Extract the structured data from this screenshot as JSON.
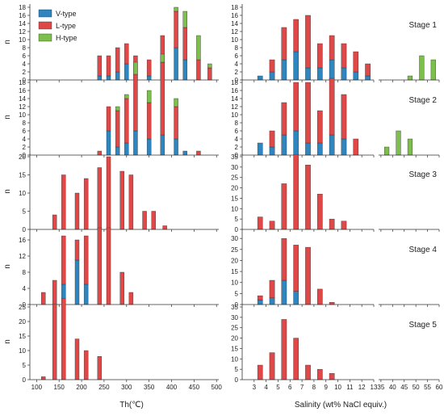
{
  "chart_data": {
    "type": "bar",
    "stacked": true,
    "legend": {
      "placement": "top-left",
      "entries": [
        {
          "name": "V-type",
          "color": "#2e86c1"
        },
        {
          "name": "L-type",
          "color": "#e04848"
        },
        {
          "name": "H-type",
          "color": "#7cbf4a"
        }
      ]
    },
    "ylabel": "n",
    "left": {
      "xlabel": "Th(℃)",
      "xlim": [
        85,
        505
      ],
      "xticks": [
        100,
        150,
        200,
        250,
        300,
        350,
        400,
        450,
        500
      ],
      "bar_width": 9
    },
    "right": {
      "xlabel": "Salinity (wt% NaCl equiv.)",
      "sections": [
        {
          "xlim": [
            2,
            13
          ],
          "xticks": [
            3,
            4,
            5,
            6,
            7,
            8,
            9,
            10,
            11,
            12,
            13
          ],
          "bar_width": 0.42
        },
        {
          "xlim": [
            34,
            60
          ],
          "xticks": [
            35,
            40,
            45,
            50,
            55,
            60
          ],
          "bar_width": 2
        }
      ]
    },
    "stages": [
      {
        "label": "Stage 1",
        "left_ylim": [
          0,
          18
        ],
        "left_yticks": [
          0,
          2,
          4,
          6,
          8,
          10,
          12,
          14,
          16,
          18
        ],
        "right_ylim": [
          0,
          18
        ],
        "right_yticks": [
          0,
          2,
          4,
          6,
          8,
          10,
          12,
          14,
          16,
          18
        ],
        "th": [
          {
            "x": 240,
            "V": 1,
            "L": 5,
            "H": 0
          },
          {
            "x": 260,
            "V": 1,
            "L": 5,
            "H": 0
          },
          {
            "x": 280,
            "V": 2,
            "L": 6,
            "H": 0
          },
          {
            "x": 300,
            "V": 4,
            "L": 5,
            "H": 0
          },
          {
            "x": 320,
            "V": 3,
            "L": 3,
            "H": 0
          },
          {
            "x": 350,
            "V": 1,
            "L": 4,
            "H": 0
          },
          {
            "x": 380,
            "V": 6,
            "L": 5,
            "H": 0
          },
          {
            "x": 410,
            "V": 8,
            "L": 9,
            "H": 1
          },
          {
            "x": 430,
            "V": 5,
            "L": 8,
            "H": 4
          },
          {
            "x": 460,
            "V": 0,
            "L": 5,
            "H": 6
          },
          {
            "x": 485,
            "V": 0,
            "L": 3,
            "H": 1
          }
        ],
        "salinity": [
          {
            "x": 3.5,
            "V": 1,
            "L": 0,
            "H": 0
          },
          {
            "x": 4.5,
            "V": 2,
            "L": 3,
            "H": 0
          },
          {
            "x": 5.5,
            "V": 5,
            "L": 8,
            "H": 0
          },
          {
            "x": 6.5,
            "V": 7,
            "L": 8,
            "H": 0
          },
          {
            "x": 7.5,
            "V": 3,
            "L": 13,
            "H": 0
          },
          {
            "x": 8.5,
            "V": 3,
            "L": 6,
            "H": 0
          },
          {
            "x": 9.5,
            "V": 5,
            "L": 6,
            "H": 0
          },
          {
            "x": 10.5,
            "V": 3,
            "L": 6,
            "H": 0
          },
          {
            "x": 11.5,
            "V": 2,
            "L": 5,
            "H": 0
          },
          {
            "x": 12.5,
            "V": 1,
            "L": 3,
            "H": 0
          },
          {
            "x": 47.5,
            "V": 0,
            "L": 0,
            "H": 1
          },
          {
            "x": 52.5,
            "V": 0,
            "L": 0,
            "H": 6
          },
          {
            "x": 57.5,
            "V": 0,
            "L": 0,
            "H": 5
          }
        ]
      },
      {
        "label": "Stage 2",
        "left_ylim": [
          0,
          18
        ],
        "left_yticks": [
          0,
          2,
          4,
          6,
          8,
          10,
          12,
          14,
          16,
          18
        ],
        "right_ylim": [
          0,
          18
        ],
        "right_yticks": [
          0,
          2,
          4,
          6,
          8,
          10,
          12,
          14,
          16,
          18
        ],
        "th": [
          {
            "x": 240,
            "V": 0,
            "L": 1,
            "H": 0
          },
          {
            "x": 260,
            "V": 6,
            "L": 6,
            "H": 0
          },
          {
            "x": 280,
            "V": 2,
            "L": 9,
            "H": 1
          },
          {
            "x": 300,
            "V": 3,
            "L": 11,
            "H": 1
          },
          {
            "x": 320,
            "V": 6,
            "L": 14,
            "H": 3
          },
          {
            "x": 350,
            "V": 4,
            "L": 9,
            "H": 3
          },
          {
            "x": 380,
            "V": 5,
            "L": 18,
            "H": 2
          },
          {
            "x": 410,
            "V": 4,
            "L": 8,
            "H": 2
          },
          {
            "x": 430,
            "V": 1,
            "L": 0,
            "H": 0
          },
          {
            "x": 460,
            "V": 0,
            "L": 1,
            "H": 0
          }
        ],
        "salinity": [
          {
            "x": 3.5,
            "V": 3,
            "L": 0,
            "H": 0
          },
          {
            "x": 4.5,
            "V": 2,
            "L": 4,
            "H": 0
          },
          {
            "x": 5.5,
            "V": 5,
            "L": 8,
            "H": 0
          },
          {
            "x": 6.5,
            "V": 6,
            "L": 12,
            "H": 0
          },
          {
            "x": 7.5,
            "V": 3,
            "L": 15,
            "H": 0
          },
          {
            "x": 8.5,
            "V": 3,
            "L": 8,
            "H": 0
          },
          {
            "x": 9.5,
            "V": 5,
            "L": 14,
            "H": 0
          },
          {
            "x": 10.5,
            "V": 4,
            "L": 11,
            "H": 0
          },
          {
            "x": 11.5,
            "V": 0,
            "L": 4,
            "H": 0
          },
          {
            "x": 37.5,
            "V": 0,
            "L": 0,
            "H": 2
          },
          {
            "x": 42.5,
            "V": 0,
            "L": 0,
            "H": 6
          },
          {
            "x": 47.5,
            "V": 0,
            "L": 0,
            "H": 4
          }
        ]
      },
      {
        "label": "Stage 3",
        "left_ylim": [
          0,
          20
        ],
        "left_yticks": [
          0,
          5,
          10,
          15,
          20
        ],
        "right_ylim": [
          0,
          35
        ],
        "right_yticks": [
          0,
          5,
          10,
          15,
          20,
          25,
          30,
          35
        ],
        "th": [
          {
            "x": 140,
            "V": 0,
            "L": 4,
            "H": 0
          },
          {
            "x": 160,
            "V": 0,
            "L": 15,
            "H": 0
          },
          {
            "x": 190,
            "V": 0,
            "L": 10,
            "H": 0
          },
          {
            "x": 210,
            "V": 0,
            "L": 14,
            "H": 0
          },
          {
            "x": 240,
            "V": 0,
            "L": 17,
            "H": 0
          },
          {
            "x": 260,
            "V": 0,
            "L": 20,
            "H": 0
          },
          {
            "x": 290,
            "V": 0,
            "L": 16,
            "H": 0
          },
          {
            "x": 310,
            "V": 0,
            "L": 15,
            "H": 0
          },
          {
            "x": 340,
            "V": 0,
            "L": 5,
            "H": 0
          },
          {
            "x": 360,
            "V": 0,
            "L": 5,
            "H": 0
          },
          {
            "x": 385,
            "V": 0,
            "L": 1,
            "H": 0
          }
        ],
        "salinity": [
          {
            "x": 3.5,
            "V": 0,
            "L": 6,
            "H": 0
          },
          {
            "x": 4.5,
            "V": 0,
            "L": 4,
            "H": 0
          },
          {
            "x": 5.5,
            "V": 0,
            "L": 22,
            "H": 0
          },
          {
            "x": 6.5,
            "V": 0,
            "L": 36,
            "H": 0
          },
          {
            "x": 7.5,
            "V": 0,
            "L": 31,
            "H": 0
          },
          {
            "x": 8.5,
            "V": 0,
            "L": 17,
            "H": 0
          },
          {
            "x": 9.5,
            "V": 0,
            "L": 5,
            "H": 0
          },
          {
            "x": 10.5,
            "V": 0,
            "L": 4,
            "H": 0
          }
        ]
      },
      {
        "label": "Stage 4",
        "left_ylim": [
          0,
          18
        ],
        "left_yticks": [
          0,
          4,
          8,
          12,
          16
        ],
        "right_ylim": [
          0,
          33
        ],
        "right_yticks": [
          0,
          5,
          10,
          15,
          20,
          25,
          30
        ],
        "th": [
          {
            "x": 115,
            "V": 0,
            "L": 3,
            "H": 0
          },
          {
            "x": 140,
            "V": 0,
            "L": 6,
            "H": 0
          },
          {
            "x": 160,
            "V": 5,
            "L": 12,
            "H": 0
          },
          {
            "x": 190,
            "V": 11,
            "L": 5,
            "H": 0
          },
          {
            "x": 210,
            "V": 5,
            "L": 12,
            "H": 0
          },
          {
            "x": 240,
            "V": 0,
            "L": 19,
            "H": 0
          },
          {
            "x": 260,
            "V": 0,
            "L": 19,
            "H": 0
          },
          {
            "x": 290,
            "V": 0,
            "L": 8,
            "H": 0
          },
          {
            "x": 310,
            "V": 0,
            "L": 3,
            "H": 0
          }
        ],
        "salinity": [
          {
            "x": 3.5,
            "V": 2,
            "L": 2,
            "H": 0
          },
          {
            "x": 4.5,
            "V": 3,
            "L": 8,
            "H": 0
          },
          {
            "x": 5.5,
            "V": 11,
            "L": 19,
            "H": 0
          },
          {
            "x": 6.5,
            "V": 6,
            "L": 21,
            "H": 0
          },
          {
            "x": 7.5,
            "V": 0,
            "L": 26,
            "H": 0
          },
          {
            "x": 8.5,
            "V": 0,
            "L": 7,
            "H": 0
          },
          {
            "x": 9.5,
            "V": 0,
            "L": 1,
            "H": 0
          }
        ]
      },
      {
        "label": "Stage 5",
        "left_ylim": [
          0,
          25
        ],
        "left_yticks": [
          0,
          5,
          10,
          15,
          20,
          25
        ],
        "right_ylim": [
          0,
          35
        ],
        "right_yticks": [
          0,
          5,
          10,
          15,
          20,
          25,
          30,
          35
        ],
        "th": [
          {
            "x": 115,
            "V": 0,
            "L": 1,
            "H": 0
          },
          {
            "x": 140,
            "V": 0,
            "L": 26,
            "H": 0
          },
          {
            "x": 160,
            "V": 0,
            "L": 28,
            "H": 0
          },
          {
            "x": 190,
            "V": 0,
            "L": 14,
            "H": 0
          },
          {
            "x": 210,
            "V": 0,
            "L": 10,
            "H": 0
          },
          {
            "x": 240,
            "V": 0,
            "L": 8,
            "H": 0
          }
        ],
        "salinity": [
          {
            "x": 3.5,
            "V": 0,
            "L": 7,
            "H": 0
          },
          {
            "x": 4.5,
            "V": 0,
            "L": 13,
            "H": 0
          },
          {
            "x": 5.5,
            "V": 0,
            "L": 29,
            "H": 0
          },
          {
            "x": 6.5,
            "V": 0,
            "L": 20,
            "H": 0
          },
          {
            "x": 7.5,
            "V": 0,
            "L": 7,
            "H": 0
          },
          {
            "x": 8.5,
            "V": 0,
            "L": 5,
            "H": 0
          },
          {
            "x": 9.5,
            "V": 0,
            "L": 3,
            "H": 0
          }
        ]
      }
    ]
  }
}
